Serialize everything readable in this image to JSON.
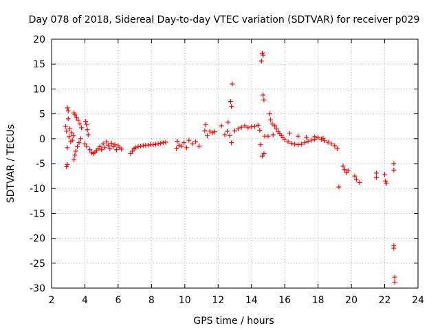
{
  "chart_data": {
    "type": "scatter",
    "title": "Day 078 of 2018, Sidereal Day-to-day VTEC variation (SDTVAR) for receiver p029",
    "xlabel": "GPS time / hours",
    "ylabel": "SDTVAR / TECUs",
    "xlim": [
      2,
      24
    ],
    "ylim": [
      -30,
      20
    ],
    "xticks": [
      2,
      4,
      6,
      8,
      10,
      12,
      14,
      16,
      18,
      20,
      22,
      24
    ],
    "yticks": [
      -30,
      -25,
      -20,
      -15,
      -10,
      -5,
      0,
      5,
      10,
      15,
      20
    ],
    "marker": "+",
    "grid": true,
    "color": "#ff0000",
    "series": [
      {
        "name": "SDTVAR",
        "points": [
          [
            2.85,
            2.5
          ],
          [
            2.9,
            1.5
          ],
          [
            2.95,
            6.2
          ],
          [
            2.95,
            -1.8
          ],
          [
            3.0,
            4.0
          ],
          [
            3.0,
            5.6
          ],
          [
            2.9,
            -5.6
          ],
          [
            2.95,
            -5.2
          ],
          [
            3.05,
            0.4
          ],
          [
            3.1,
            2.0
          ],
          [
            3.15,
            -0.6
          ],
          [
            3.2,
            1.2
          ],
          [
            3.25,
            -0.3
          ],
          [
            3.3,
            0.6
          ],
          [
            3.35,
            -4.2
          ],
          [
            3.35,
            5.2
          ],
          [
            3.4,
            -3.3
          ],
          [
            3.4,
            4.8
          ],
          [
            3.45,
            -2.5
          ],
          [
            3.5,
            4.3
          ],
          [
            3.55,
            -1.6
          ],
          [
            3.6,
            3.7
          ],
          [
            3.65,
            -0.8
          ],
          [
            3.7,
            3.0
          ],
          [
            3.75,
            0.0
          ],
          [
            3.8,
            2.2
          ],
          [
            4.0,
            -1.0
          ],
          [
            4.05,
            3.5
          ],
          [
            4.1,
            2.8
          ],
          [
            4.15,
            1.8
          ],
          [
            4.2,
            0.8
          ],
          [
            4.1,
            -1.5
          ],
          [
            4.3,
            -2.2
          ],
          [
            4.4,
            -2.8
          ],
          [
            4.5,
            -3.0
          ],
          [
            4.6,
            -2.7
          ],
          [
            4.7,
            -2.4
          ],
          [
            4.8,
            -2.0
          ],
          [
            4.9,
            -1.6
          ],
          [
            5.0,
            -2.2
          ],
          [
            5.1,
            -1.0
          ],
          [
            5.2,
            -1.8
          ],
          [
            5.3,
            -0.6
          ],
          [
            5.4,
            -1.3
          ],
          [
            5.5,
            -2.0
          ],
          [
            5.6,
            -0.9
          ],
          [
            5.7,
            -1.6
          ],
          [
            5.8,
            -1.2
          ],
          [
            5.9,
            -2.2
          ],
          [
            6.0,
            -1.4
          ],
          [
            6.1,
            -1.8
          ],
          [
            6.2,
            -2.1
          ],
          [
            6.75,
            -3.0
          ],
          [
            6.85,
            -2.5
          ],
          [
            6.95,
            -2.0
          ],
          [
            7.05,
            -1.8
          ],
          [
            7.2,
            -1.6
          ],
          [
            7.35,
            -1.5
          ],
          [
            7.5,
            -1.4
          ],
          [
            7.65,
            -1.3
          ],
          [
            7.8,
            -1.3
          ],
          [
            7.95,
            -1.2
          ],
          [
            8.1,
            -1.2
          ],
          [
            8.25,
            -1.1
          ],
          [
            8.4,
            -1.0
          ],
          [
            8.55,
            -0.9
          ],
          [
            8.7,
            -0.8
          ],
          [
            8.85,
            -0.7
          ],
          [
            9.5,
            -2.0
          ],
          [
            9.55,
            -0.5
          ],
          [
            9.65,
            -1.3
          ],
          [
            9.8,
            -1.5
          ],
          [
            9.95,
            -0.8
          ],
          [
            10.1,
            -1.8
          ],
          [
            10.25,
            -0.3
          ],
          [
            10.45,
            -1.0
          ],
          [
            10.65,
            -0.6
          ],
          [
            10.85,
            -1.5
          ],
          [
            11.2,
            1.6
          ],
          [
            11.25,
            2.8
          ],
          [
            11.35,
            0.6
          ],
          [
            11.5,
            1.5
          ],
          [
            11.65,
            1.2
          ],
          [
            11.8,
            1.4
          ],
          [
            12.2,
            2.6
          ],
          [
            12.4,
            0.8
          ],
          [
            12.55,
            1.5
          ],
          [
            12.6,
            3.3
          ],
          [
            12.7,
            0.6
          ],
          [
            12.8,
            -0.8
          ],
          [
            12.75,
            7.5
          ],
          [
            12.8,
            6.5
          ],
          [
            12.85,
            11.0
          ],
          [
            13.0,
            1.6
          ],
          [
            13.2,
            2.0
          ],
          [
            13.4,
            2.3
          ],
          [
            13.6,
            2.6
          ],
          [
            13.8,
            2.2
          ],
          [
            14.0,
            2.4
          ],
          [
            14.2,
            2.5
          ],
          [
            14.4,
            2.7
          ],
          [
            14.5,
            1.7
          ],
          [
            14.55,
            -1.2
          ],
          [
            14.6,
            15.6
          ],
          [
            14.65,
            17.2
          ],
          [
            14.7,
            16.8
          ],
          [
            14.7,
            8.8
          ],
          [
            14.75,
            7.8
          ],
          [
            14.65,
            -3.5
          ],
          [
            14.75,
            -3.0
          ],
          [
            14.8,
            0.5
          ],
          [
            15.0,
            0.5
          ],
          [
            15.1,
            5.0
          ],
          [
            15.15,
            3.8
          ],
          [
            15.25,
            3.0
          ],
          [
            15.3,
            0.8
          ],
          [
            15.4,
            2.6
          ],
          [
            15.5,
            2.0
          ],
          [
            15.6,
            1.4
          ],
          [
            15.7,
            1.0
          ],
          [
            15.8,
            0.6
          ],
          [
            15.9,
            0.2
          ],
          [
            16.0,
            -0.2
          ],
          [
            16.2,
            -0.6
          ],
          [
            16.4,
            -0.9
          ],
          [
            16.6,
            -1.1
          ],
          [
            16.8,
            -1.2
          ],
          [
            17.0,
            -1.1
          ],
          [
            17.2,
            -0.8
          ],
          [
            17.4,
            -0.5
          ],
          [
            17.6,
            -0.3
          ],
          [
            17.8,
            -0.1
          ],
          [
            18.0,
            0.2
          ],
          [
            18.2,
            -0.1
          ],
          [
            18.4,
            -0.4
          ],
          [
            18.6,
            -0.7
          ],
          [
            18.8,
            -1.0
          ],
          [
            19.0,
            -1.4
          ],
          [
            19.15,
            -2.0
          ],
          [
            16.3,
            1.1
          ],
          [
            16.8,
            0.5
          ],
          [
            17.3,
            0.3
          ],
          [
            17.8,
            0.4
          ],
          [
            18.3,
            0.1
          ],
          [
            19.25,
            -9.7
          ],
          [
            19.5,
            -5.5
          ],
          [
            19.6,
            -6.2
          ],
          [
            19.7,
            -6.8
          ],
          [
            19.8,
            -6.4
          ],
          [
            20.2,
            -7.5
          ],
          [
            20.3,
            -8.2
          ],
          [
            20.5,
            -8.8
          ],
          [
            21.5,
            -6.9
          ],
          [
            21.5,
            -7.8
          ],
          [
            22.0,
            -7.2
          ],
          [
            22.05,
            -8.5
          ],
          [
            22.1,
            -9.0
          ],
          [
            22.55,
            -5.0
          ],
          [
            22.55,
            -6.3
          ],
          [
            22.55,
            -21.5
          ],
          [
            22.55,
            -22.0
          ],
          [
            22.6,
            -27.8
          ],
          [
            22.6,
            -28.8
          ]
        ]
      }
    ]
  }
}
